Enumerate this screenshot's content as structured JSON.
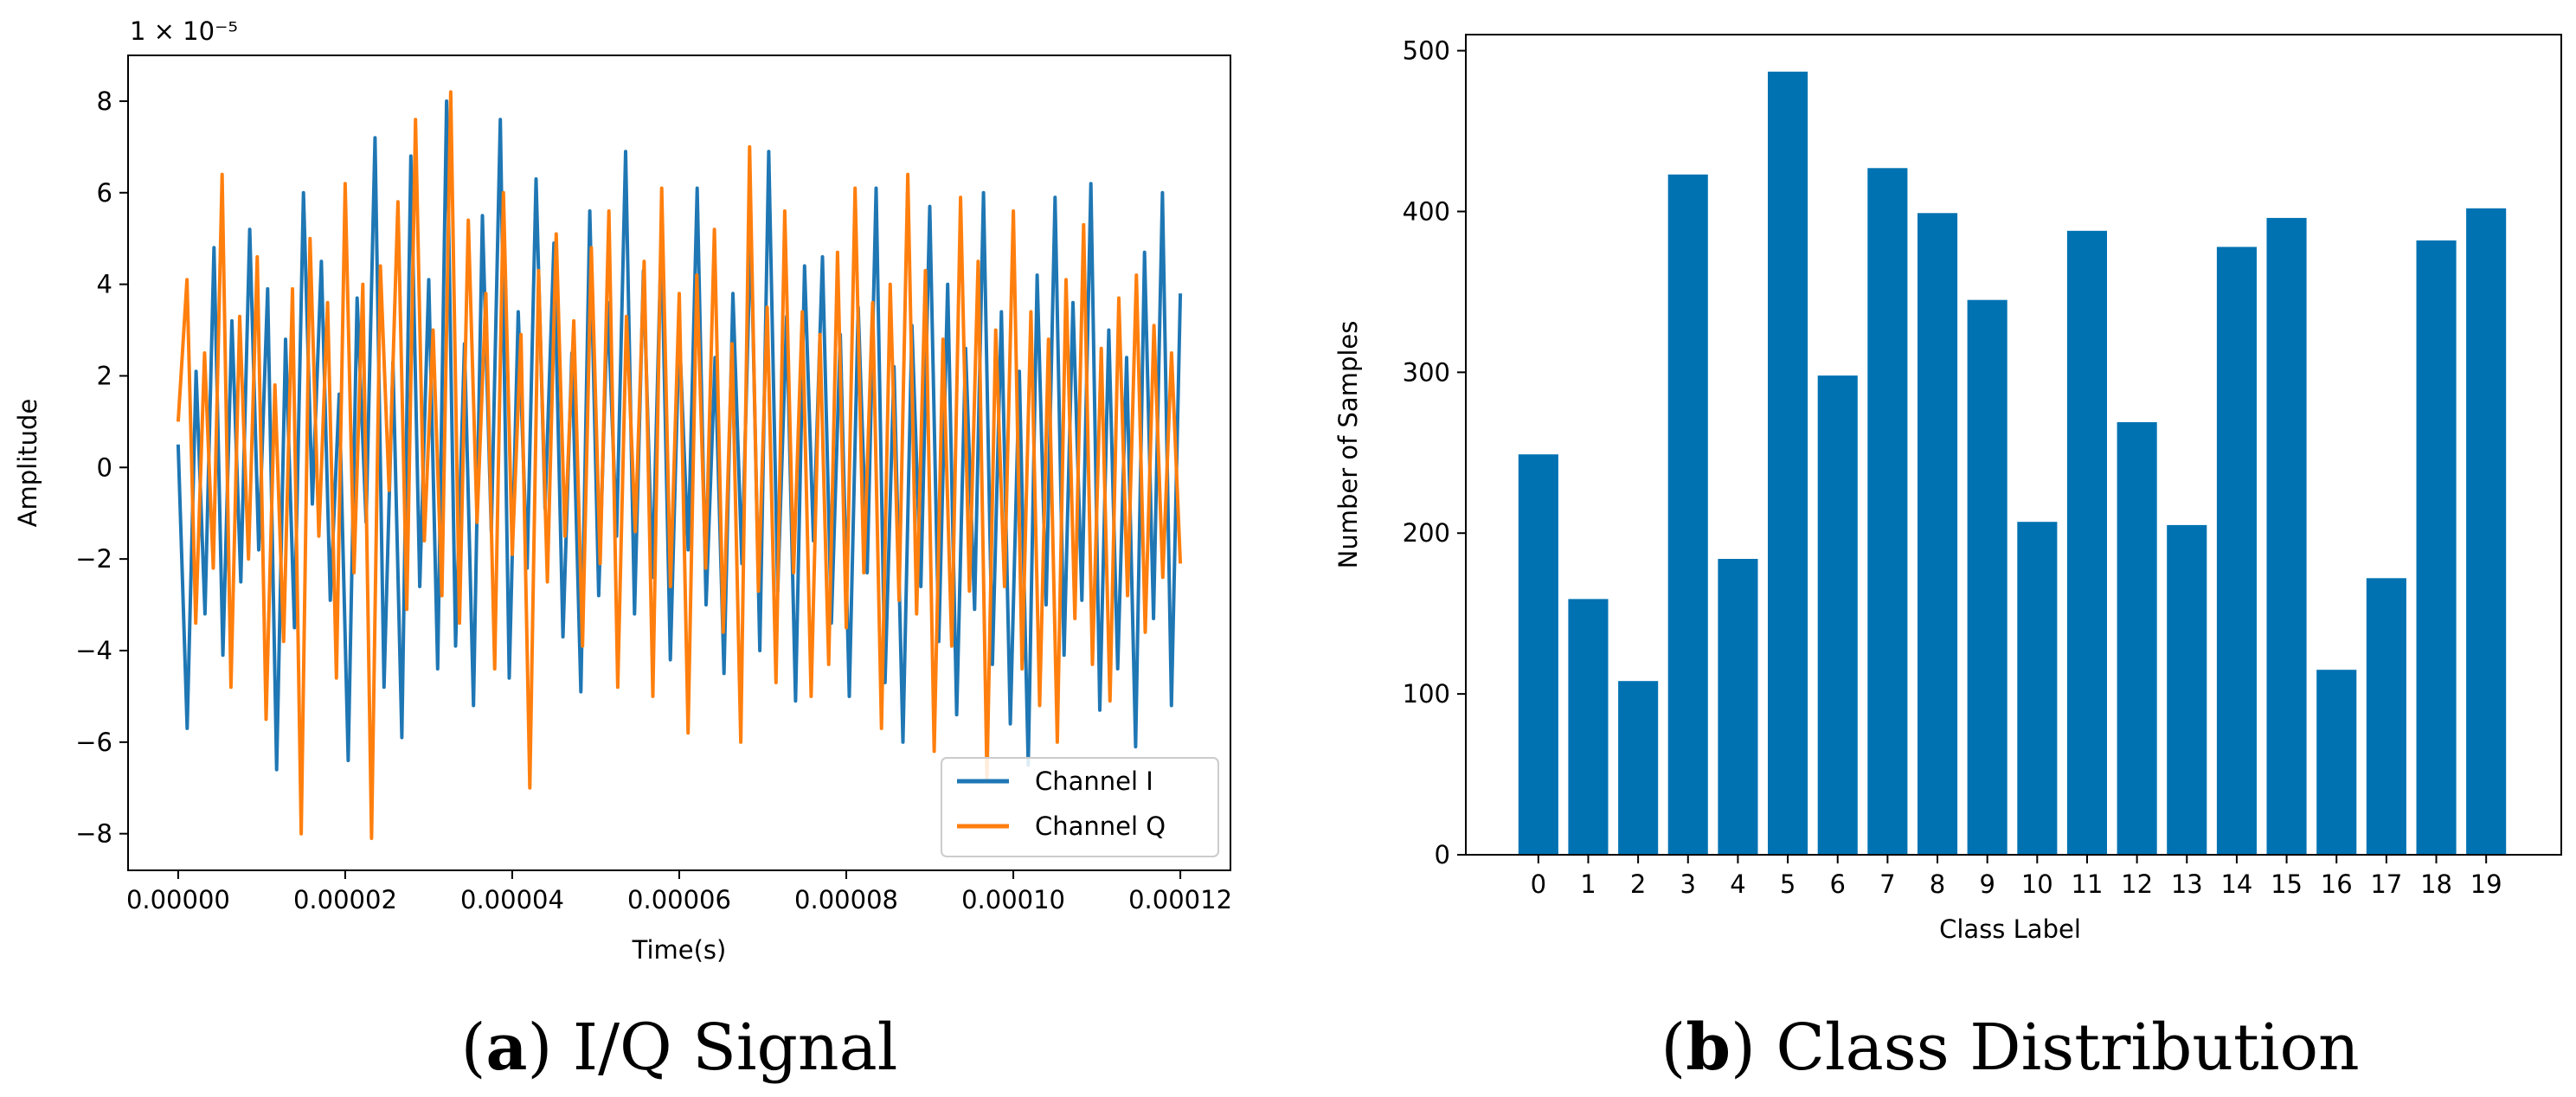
{
  "chart_data": [
    {
      "type": "line",
      "title": "",
      "xlabel": "Time(s)",
      "ylabel": "Amplitude",
      "scale_note": "1 × 10⁻⁵",
      "xlim": [
        -6e-06,
        0.000126
      ],
      "ylim": [
        -8.8,
        9.0
      ],
      "x_tick_values": [
        0,
        2e-05,
        4e-05,
        6e-05,
        8e-05,
        0.0001,
        0.00012
      ],
      "x_tick_labels": [
        "0.00000",
        "0.00002",
        "0.00004",
        "0.00006",
        "0.00008",
        "0.00010",
        "0.00012"
      ],
      "y_tick_values": [
        -8,
        -6,
        -4,
        -2,
        0,
        2,
        4,
        6,
        8
      ],
      "y_tick_labels": [
        "−8",
        "−6",
        "−4",
        "−2",
        "0",
        "2",
        "4",
        "6",
        "8"
      ],
      "legend": [
        "Channel I",
        "Channel Q"
      ],
      "legend_position": "lower-right",
      "series": [
        {
          "name": "Channel I",
          "color": "#1f77b4",
          "x_start": 0,
          "x_end": 0.00012,
          "values": [
            0.5,
            -5.7,
            2.1,
            -3.2,
            4.8,
            -4.1,
            3.2,
            -2.5,
            5.2,
            -1.8,
            3.9,
            -6.6,
            2.8,
            -3.5,
            6.0,
            -0.8,
            4.5,
            -2.9,
            1.6,
            -6.4,
            3.7,
            -1.2,
            7.2,
            -4.8,
            2.3,
            -5.9,
            6.8,
            -2.6,
            4.1,
            -4.4,
            8.0,
            -3.9,
            2.7,
            -5.2,
            5.5,
            -1.4,
            7.6,
            -4.6,
            3.4,
            -2.2,
            6.3,
            -0.9,
            4.9,
            -3.7,
            2.5,
            -4.9,
            5.6,
            -2.8,
            3.6,
            -1.5,
            6.9,
            -3.2,
            4.3,
            -2.4,
            5.1,
            -4.2,
            3.0,
            -1.8,
            6.1,
            -3.0,
            2.4,
            -4.5,
            3.8,
            -2.1,
            5.3,
            -4.0,
            6.9,
            -2.7,
            3.3,
            -5.1,
            4.4,
            -1.6,
            4.6,
            -3.4,
            2.9,
            -5.0,
            3.5,
            -2.3,
            6.1,
            -4.7,
            2.2,
            -6.0,
            3.1,
            -2.6,
            5.7,
            -3.8,
            4.0,
            -5.4,
            2.6,
            -3.1,
            6.0,
            -4.3,
            3.4,
            -5.6,
            2.1,
            -6.5,
            4.2,
            -3.0,
            5.9,
            -4.1,
            3.6,
            -2.9,
            6.2,
            -5.3,
            3.0,
            -4.4,
            2.4,
            -6.1,
            4.7,
            -3.3,
            6.0,
            -5.2,
            3.8
          ]
        },
        {
          "name": "Channel Q",
          "color": "#ff7f0e",
          "x_start": 0,
          "x_end": 0.00012,
          "values": [
            1.0,
            4.1,
            -3.4,
            2.5,
            -2.2,
            6.4,
            -4.8,
            3.3,
            -2.0,
            4.6,
            -5.5,
            1.8,
            -3.8,
            3.9,
            -8.0,
            5.0,
            -1.5,
            3.6,
            -4.6,
            6.2,
            -2.3,
            4.0,
            -8.1,
            4.4,
            -0.5,
            5.8,
            -3.1,
            7.6,
            -1.6,
            3.0,
            -2.8,
            8.2,
            -3.4,
            5.4,
            -1.2,
            3.8,
            -4.4,
            6.0,
            -1.9,
            2.9,
            -7.0,
            4.3,
            -2.5,
            5.1,
            -1.5,
            3.2,
            -3.9,
            4.8,
            -2.1,
            5.6,
            -4.8,
            3.3,
            -1.4,
            4.5,
            -5.0,
            6.1,
            -2.6,
            3.8,
            -5.8,
            4.2,
            -2.2,
            5.2,
            -3.6,
            2.7,
            -6.0,
            7.0,
            -2.7,
            3.5,
            -4.7,
            5.6,
            -2.3,
            3.4,
            -5.0,
            2.9,
            -4.3,
            4.7,
            -3.5,
            6.1,
            -2.3,
            3.6,
            -5.7,
            4.0,
            -2.9,
            6.4,
            -3.2,
            4.3,
            -6.2,
            2.8,
            -3.9,
            5.9,
            -2.7,
            4.5,
            -6.8,
            3.0,
            -2.6,
            5.6,
            -4.4,
            3.4,
            -5.2,
            2.8,
            -6.0,
            4.1,
            -3.3,
            5.3,
            -4.3,
            2.6,
            -5.1,
            3.7,
            -2.8,
            4.2,
            -3.6,
            3.1,
            -2.4,
            2.5,
            -2.1
          ]
        }
      ]
    },
    {
      "type": "bar",
      "title": "",
      "xlabel": "Class Label",
      "ylabel": "Number of Samples",
      "ylim": [
        0,
        510
      ],
      "y_tick_values": [
        0,
        100,
        200,
        300,
        400,
        500
      ],
      "y_tick_labels": [
        "0",
        "100",
        "200",
        "300",
        "400",
        "500"
      ],
      "categories": [
        "0",
        "1",
        "2",
        "3",
        "4",
        "5",
        "6",
        "7",
        "8",
        "9",
        "10",
        "11",
        "12",
        "13",
        "14",
        "15",
        "16",
        "17",
        "18",
        "19"
      ],
      "values": [
        249,
        159,
        108,
        423,
        184,
        487,
        298,
        427,
        399,
        345,
        207,
        388,
        269,
        205,
        378,
        396,
        115,
        172,
        382,
        402
      ],
      "color": "#0072b2"
    }
  ],
  "captions": {
    "a": {
      "label": "a",
      "text": "I/Q Signal"
    },
    "b": {
      "label": "b",
      "text": "Class Distribution"
    }
  }
}
